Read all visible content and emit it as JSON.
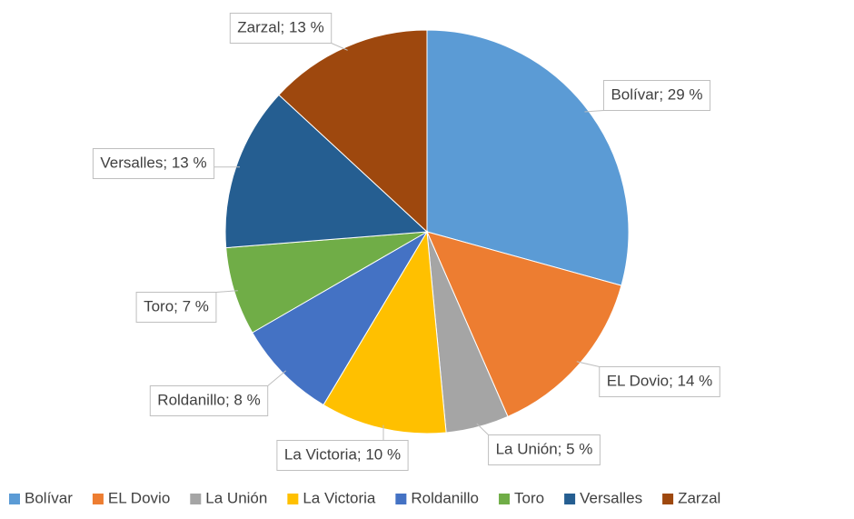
{
  "chart_data": {
    "type": "pie",
    "categories": [
      "Bolívar",
      "EL Dovio",
      "La Unión",
      "La Victoria",
      "Roldanillo",
      "Toro",
      "Versalles",
      "Zarzal"
    ],
    "values": [
      29,
      14,
      5,
      10,
      8,
      7,
      13,
      13
    ],
    "value_labels": [
      "Bolívar; 29 %",
      "EL Dovio; 14 %",
      "La Unión; 5 %",
      "La Victoria; 10 %",
      "Roldanillo; 8 %",
      "Toro; 7 %",
      "Versalles; 13 %",
      "Zarzal; 13 %"
    ],
    "colors": [
      "#5b9bd5",
      "#ed7d31",
      "#a5a5a5",
      "#ffc000",
      "#4472c4",
      "#70ad47",
      "#255e91",
      "#9e480e"
    ],
    "legend": "bottom"
  }
}
